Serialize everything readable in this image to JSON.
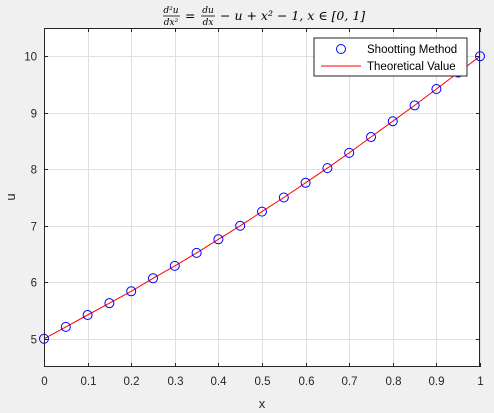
{
  "chart_data": {
    "type": "line",
    "title": "d²u/dx² = du/dx − u + x² − 1, x ∈ [0, 1]",
    "title_parts": {
      "lhs_num": "d²u",
      "lhs_den": "dx²",
      "eq": "=",
      "rhs_num": "du",
      "rhs_den": "dx",
      "tail": "− u + x² − 1, x ∈ [0, 1]"
    },
    "xlabel": "x",
    "ylabel": "u",
    "xlim": [
      0,
      1
    ],
    "ylim": [
      4.5,
      10.5
    ],
    "xticks": [
      0,
      0.1,
      0.2,
      0.3,
      0.4,
      0.5,
      0.6,
      0.7,
      0.8,
      0.9,
      1
    ],
    "xtick_labels": [
      "0",
      "0.1",
      "0.2",
      "0.3",
      "0.4",
      "0.5",
      "0.6",
      "0.7",
      "0.8",
      "0.9",
      "1"
    ],
    "yticks": [
      5,
      6,
      7,
      8,
      9,
      10
    ],
    "ytick_labels": [
      "5",
      "6",
      "7",
      "8",
      "9",
      "10"
    ],
    "grid": true,
    "legend_position": "top-right",
    "series": [
      {
        "name": "Shootting Method",
        "style": "marker",
        "marker": "circle",
        "color": "#0000ff",
        "x": [
          0,
          0.05,
          0.1,
          0.15,
          0.2,
          0.25,
          0.3,
          0.35,
          0.4,
          0.45,
          0.5,
          0.55,
          0.6,
          0.65,
          0.7,
          0.75,
          0.8,
          0.85,
          0.9,
          0.95,
          1
        ],
        "y": [
          5.0,
          5.21,
          5.42,
          5.63,
          5.84,
          6.07,
          6.29,
          6.52,
          6.76,
          7.0,
          7.25,
          7.5,
          7.76,
          8.02,
          8.29,
          8.57,
          8.85,
          9.13,
          9.42,
          9.71,
          10.0
        ]
      },
      {
        "name": "Theoretical Value",
        "style": "line",
        "color": "#ff0000",
        "x": [
          0,
          0.05,
          0.1,
          0.15,
          0.2,
          0.25,
          0.3,
          0.35,
          0.4,
          0.45,
          0.5,
          0.55,
          0.6,
          0.65,
          0.7,
          0.75,
          0.8,
          0.85,
          0.9,
          0.95,
          1
        ],
        "y": [
          5.0,
          5.21,
          5.42,
          5.63,
          5.84,
          6.07,
          6.29,
          6.52,
          6.76,
          7.0,
          7.25,
          7.5,
          7.76,
          8.02,
          8.29,
          8.57,
          8.85,
          9.13,
          9.42,
          9.71,
          10.0
        ]
      }
    ]
  }
}
